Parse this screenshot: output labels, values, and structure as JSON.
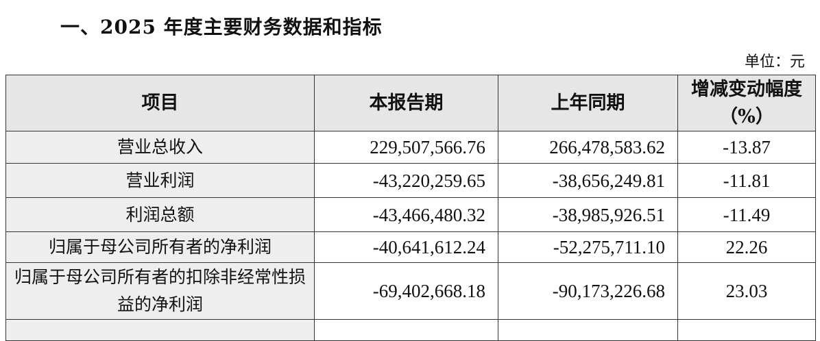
{
  "title": "一、2025 年度主要财务数据和指标",
  "unit": "单位：元",
  "table": {
    "headers": [
      "项目",
      "本报告期",
      "上年同期",
      "增减变动幅度（%）"
    ],
    "rows": [
      {
        "item": "营业总收入",
        "current": "229,507,566.76",
        "prior": "266,478,583.62",
        "change": "-13.87"
      },
      {
        "item": "营业利润",
        "current": "-43,220,259.65",
        "prior": "-38,656,249.81",
        "change": "-11.81"
      },
      {
        "item": "利润总额",
        "current": "-43,466,480.32",
        "prior": "-38,985,926.51",
        "change": "-11.49"
      },
      {
        "item": "归属于母公司所有者的净利润",
        "current": "-40,641,612.24",
        "prior": "-52,275,711.10",
        "change": "22.26"
      },
      {
        "item": "归属于母公司所有者的扣除非经常性损益的净利润",
        "current": "-69,402,668.18",
        "prior": "-90,173,226.68",
        "change": "23.03"
      }
    ]
  }
}
